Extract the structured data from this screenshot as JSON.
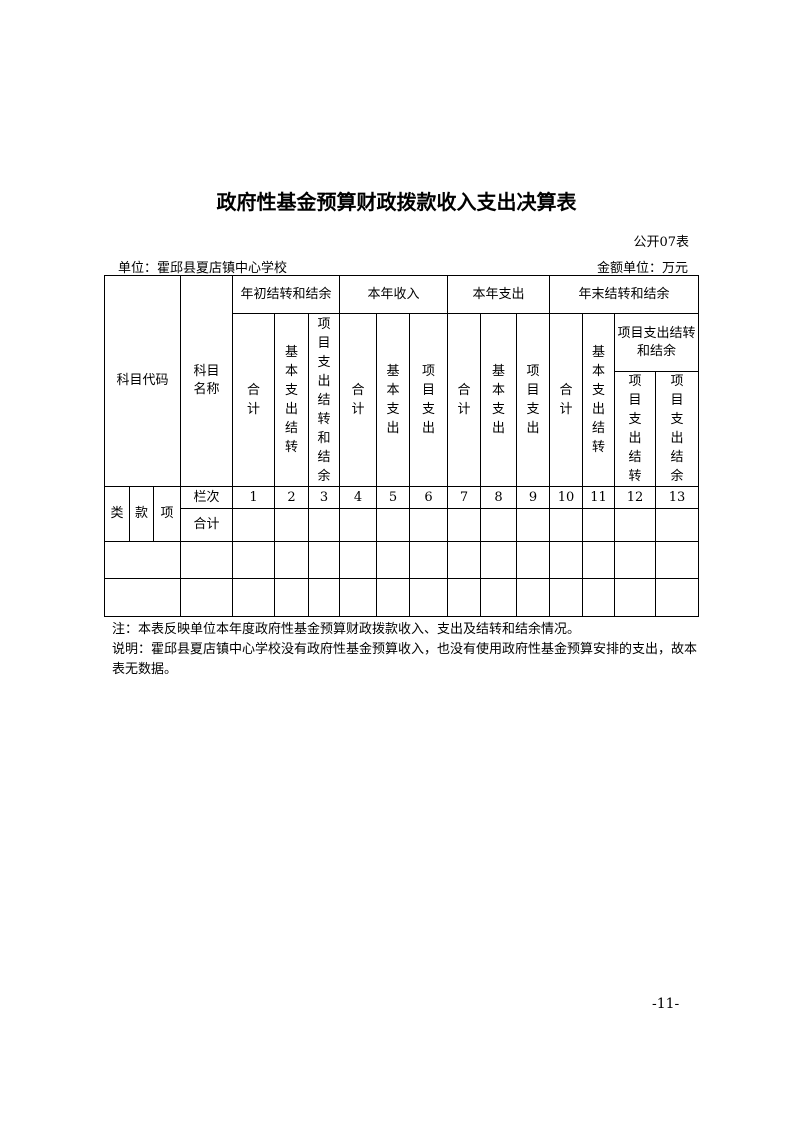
{
  "title": "政府性基金预算财政拨款收入支出决算表",
  "table_no": "公开07表",
  "unit": "单位：霍邱县夏店镇中心学校",
  "amount_unit": "金额单位：万元",
  "headers": {
    "code": "科目代码",
    "name": "科目名称",
    "g1": "年初结转和结余",
    "g2": "本年收入",
    "g3": "本年支出",
    "g4": "年末结转和结余",
    "total": "合计",
    "basic_carry": "基本支出结转",
    "proj_carry_bal": "项目支出结转和结余",
    "basic": "基本支出",
    "proj": "项目支出",
    "proj_sub": "项目支出结转和结余",
    "proj_carry": "项目支出结转",
    "proj_bal": "项目支出结余",
    "lei": "类",
    "kuan": "款",
    "xiang": "项",
    "col": "栏次",
    "sum": "合计"
  },
  "col_numbers": [
    "1",
    "2",
    "3",
    "4",
    "5",
    "6",
    "7",
    "8",
    "9",
    "10",
    "11",
    "12",
    "13"
  ],
  "notes": [
    "注：本表反映单位本年度政府性基金预算财政拨款收入、支出及结转和结余情况。",
    "说明：霍邱县夏店镇中心学校没有政府性基金预算收入，也没有使用政府性基金预算安排的支出，故本表无数据。"
  ],
  "page_number": "-11-"
}
